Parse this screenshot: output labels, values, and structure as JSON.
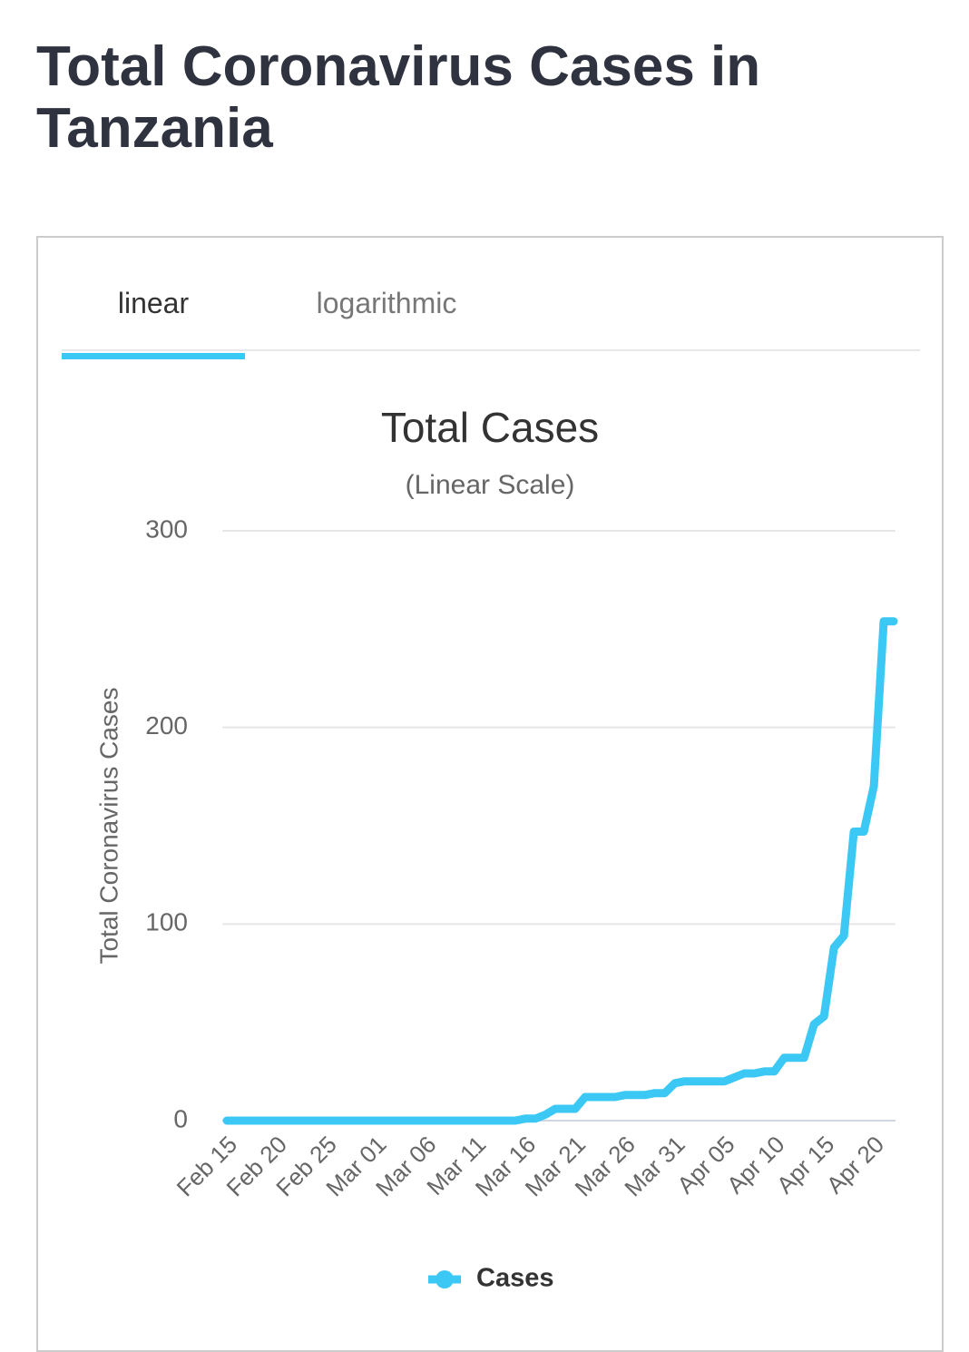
{
  "page_title": "Total Coronavirus Cases in Tanzania",
  "tabs": [
    "linear",
    "logarithmic"
  ],
  "chart_data": {
    "type": "line",
    "title": "Total Cases",
    "subtitle": "(Linear Scale)",
    "ylabel": "Total Coronavirus Cases",
    "categories": [
      "Feb 15",
      null,
      null,
      null,
      null,
      "Feb 20",
      null,
      null,
      null,
      null,
      "Feb 25",
      null,
      null,
      null,
      null,
      "Mar 01",
      null,
      null,
      null,
      null,
      "Mar 06",
      null,
      null,
      null,
      null,
      "Mar 11",
      null,
      null,
      null,
      null,
      "Mar 16",
      null,
      null,
      null,
      null,
      "Mar 21",
      null,
      null,
      null,
      null,
      "Mar 26",
      null,
      null,
      null,
      null,
      "Mar 31",
      null,
      null,
      null,
      null,
      "Apr 05",
      null,
      null,
      null,
      null,
      "Apr 10",
      null,
      null,
      null,
      null,
      "Apr 15",
      null,
      null,
      null,
      null,
      "Apr 20",
      null,
      null
    ],
    "series": [
      {
        "name": "Cases",
        "color": "#3cc8f5",
        "values": [
          0,
          0,
          0,
          0,
          0,
          0,
          0,
          0,
          0,
          0,
          0,
          0,
          0,
          0,
          0,
          0,
          0,
          0,
          0,
          0,
          0,
          0,
          0,
          0,
          0,
          0,
          0,
          0,
          0,
          0,
          1,
          1,
          3,
          6,
          6,
          6,
          12,
          12,
          12,
          12,
          13,
          13,
          13,
          14,
          14,
          19,
          20,
          20,
          20,
          20,
          20,
          22,
          24,
          24,
          25,
          25,
          32,
          32,
          32,
          49,
          53,
          88,
          94,
          147,
          147,
          170,
          254,
          254
        ]
      }
    ],
    "ylim": [
      0,
      300
    ],
    "yticks": [
      0,
      100,
      200,
      300
    ],
    "grid": true,
    "legend": "bottom"
  }
}
